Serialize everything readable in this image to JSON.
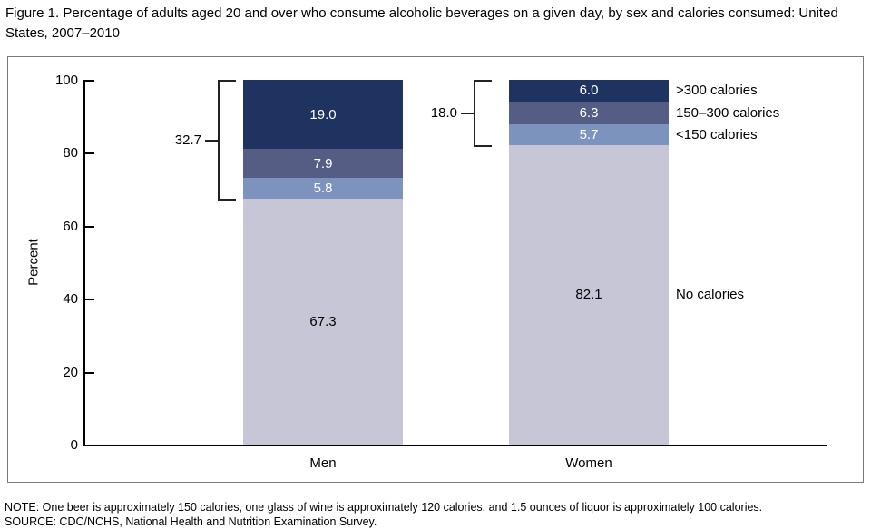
{
  "title": "Figure 1. Percentage of adults aged 20 and over who consume alcoholic beverages on a given day, by sex and calories consumed: United States, 2007–2010",
  "note": "NOTE: One beer is approximately 150 calories, one glass of wine is approximately 120 calories, and 1.5 ounces of liquor is approximately 100 calories.",
  "source": "SOURCE: CDC/NCHS, National Health and Nutrition Examination Survey.",
  "chart_data": {
    "type": "bar",
    "stacked": true,
    "title": "Figure 1. Percentage of adults aged 20 and over who consume alcoholic beverages on a given day, by sex and calories consumed: United States, 2007–2010",
    "xlabel": "",
    "ylabel": "Percent",
    "ylim": [
      0,
      100
    ],
    "yticks": [
      0,
      20,
      40,
      60,
      80,
      100
    ],
    "grid": false,
    "legend_position": "right-of-bars",
    "legend_labels_top_to_bottom": [
      ">300 calories",
      "150–300 calories",
      "<150 calories",
      "No calories"
    ],
    "categories": [
      "Men",
      "Women"
    ],
    "series": [
      {
        "name": "No calories",
        "color": "#c6c6d7",
        "label_color": "#000000",
        "values": [
          67.3,
          82.1
        ]
      },
      {
        "name": "<150 calories",
        "color": "#7b93bd",
        "label_color": "#ffffff",
        "values": [
          5.8,
          5.7
        ]
      },
      {
        "name": "150–300 calories",
        "color": "#565d85",
        "label_color": "#ffffff",
        "values": [
          7.9,
          6.3
        ]
      },
      {
        "name": ">300 calories",
        "color": "#1e3360",
        "label_color": "#ffffff",
        "values": [
          19.0,
          6.0
        ]
      }
    ],
    "annotations": {
      "brackets": [
        {
          "label": "32.7",
          "category": "Men",
          "from": 67.3,
          "to": 100
        },
        {
          "label": "18.0",
          "category": "Women",
          "from": 82.1,
          "to": 100
        }
      ]
    }
  }
}
